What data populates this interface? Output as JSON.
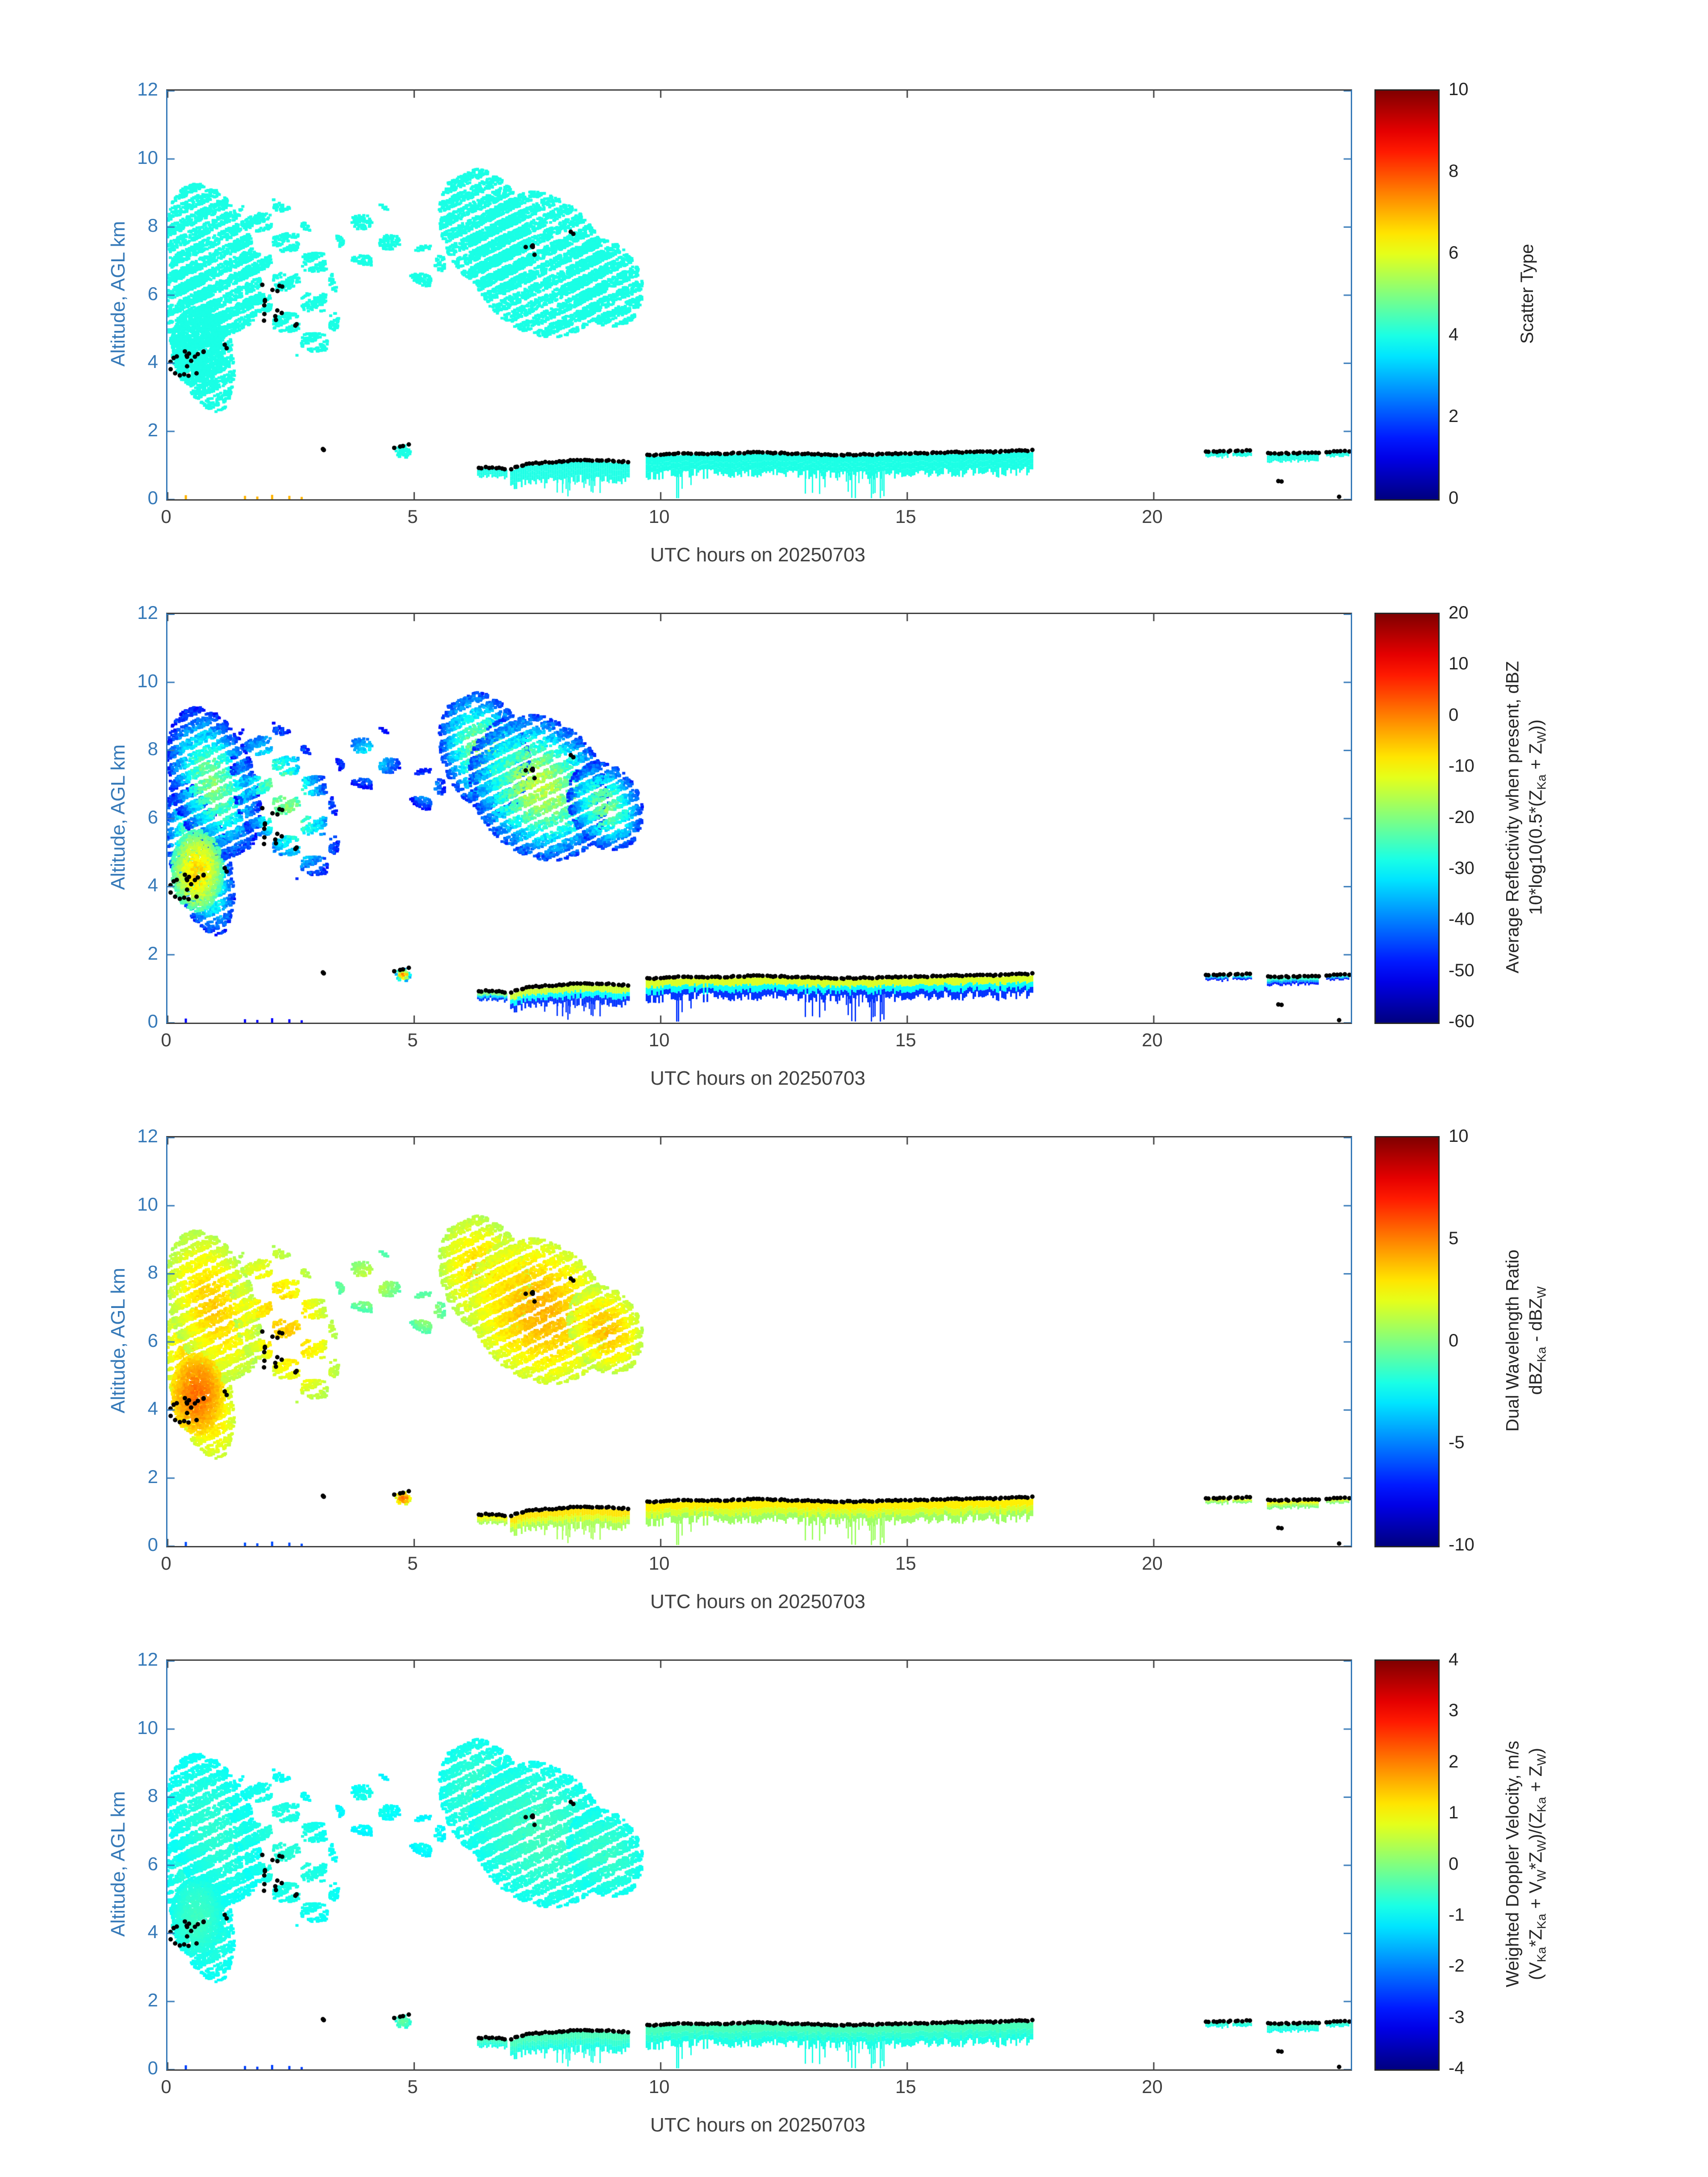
{
  "figure": {
    "xlabel": "UTC hours on 20250703",
    "ylabel": "Altitude, AGL km",
    "x_ticks": [
      "0",
      "5",
      "10",
      "15",
      "20"
    ],
    "y_ticks": [
      "0",
      "2",
      "4",
      "6",
      "8",
      "10",
      "12"
    ],
    "axis_color_y": "#3579b8",
    "axis_color_x": "#404040"
  },
  "panels": [
    {
      "name": "scatter-type",
      "value_key": "scatter",
      "colorbar": {
        "label_lines": [
          "Scatter Type"
        ],
        "range": [
          0,
          10
        ],
        "ticks": [
          "0",
          "2",
          "4",
          "6",
          "8",
          "10"
        ]
      }
    },
    {
      "name": "reflectivity",
      "value_key": "refl",
      "colorbar": {
        "label_lines": [
          "Average Reflectivity when present, dBZ",
          "10*log10(0.5*(Z_{Ka} + Z_{W}))"
        ],
        "range": [
          -60,
          20
        ],
        "ticks": [
          "-60",
          "-50",
          "-40",
          "-30",
          "-20",
          "-10",
          "0",
          "10",
          "20"
        ]
      }
    },
    {
      "name": "dual-wavelength-ratio",
      "value_key": "dwr",
      "colorbar": {
        "label_lines": [
          "Dual Wavelength Ratio",
          "dBZ_{Ka} - dBZ_{W}"
        ],
        "range": [
          -10,
          10
        ],
        "ticks": [
          "-10",
          "-5",
          "0",
          "5",
          "10"
        ]
      }
    },
    {
      "name": "doppler-velocity",
      "value_key": "dop",
      "colorbar": {
        "label_lines": [
          "Weighted Doppler Velocity, m/s",
          "(V_{Ka}*Z_{Ka} + V_{W}*Z_{W})/(Z_{Ka} + Z_{W})"
        ],
        "range": [
          -4,
          4
        ],
        "ticks": [
          "-4",
          "-3",
          "-2",
          "-1",
          "0",
          "1",
          "2",
          "3",
          "4"
        ]
      }
    }
  ],
  "chart_data": {
    "type": "heatmap",
    "colormap": "jet",
    "x": {
      "label": "UTC hours on 20250703",
      "range": [
        0,
        24
      ],
      "ticks": [
        0,
        5,
        10,
        15,
        20
      ],
      "units": "hours"
    },
    "y": {
      "label": "Altitude, AGL km",
      "range": [
        0,
        12
      ],
      "ticks": [
        0,
        2,
        4,
        6,
        8,
        10,
        12
      ],
      "units": "km"
    },
    "panels": [
      {
        "title": "Scatter Type",
        "range": [
          0,
          10
        ],
        "ticks": [
          0,
          2,
          4,
          6,
          8,
          10
        ],
        "dominant_value": 4
      },
      {
        "title": "Average Reflectivity when present, dBZ 10*log10(0.5*(Z_Ka + Z_W))",
        "range": [
          -60,
          20
        ],
        "ticks": [
          -60,
          -50,
          -40,
          -30,
          -20,
          -10,
          0,
          10,
          20
        ],
        "typical_core_dBZ": -13,
        "typical_edge_dBZ": -46
      },
      {
        "title": "Dual Wavelength Ratio dBZ_Ka - dBZ_W",
        "range": [
          -10,
          10
        ],
        "ticks": [
          -10,
          -5,
          0,
          5,
          10
        ],
        "typical_value": 3.5
      },
      {
        "title": "Weighted Doppler Velocity, m/s (V_Ka*Z_Ka + V_W*Z_W)/(Z_Ka + Z_W)",
        "range": [
          -4,
          4
        ],
        "ticks": [
          -4,
          -3,
          -2,
          -1,
          0,
          1,
          2,
          3,
          4
        ],
        "typical_value": -0.6
      }
    ],
    "features": [
      {
        "id": "morning-deck-low",
        "type": "blob",
        "t": [
          0.0,
          1.25
        ],
        "alt": [
          2.6,
          7.1
        ],
        "streak": true,
        "shear": 0.6,
        "vals": {
          "scatter": [
            4,
            4
          ],
          "refl": [
            -16,
            -47
          ],
          "dwr": [
            4,
            1.5
          ],
          "dop": [
            -0.6,
            -0.95
          ]
        }
      },
      {
        "id": "morning-deck-high",
        "type": "blob",
        "t": [
          0.0,
          1.8
        ],
        "alt": [
          4.8,
          9.3
        ],
        "streak": true,
        "shear": 0.6,
        "vals": {
          "scatter": [
            4,
            4
          ],
          "refl": [
            -20,
            -48
          ],
          "dwr": [
            3.5,
            1
          ],
          "dop": [
            -0.65,
            -0.95
          ]
        }
      },
      {
        "id": "morning-core",
        "type": "blob",
        "t": [
          0.05,
          1.1
        ],
        "alt": [
          3.3,
          5.7
        ],
        "vals": {
          "scatter": [
            4,
            4
          ],
          "refl": [
            -6,
            -25
          ],
          "dwr": [
            5.5,
            3
          ],
          "dop": [
            -0.5,
            -0.85
          ]
        }
      },
      {
        "id": "morning-streaks",
        "type": "blob",
        "t": [
          1.35,
          3.35
        ],
        "alt": [
          4.2,
          8.9
        ],
        "streak": true,
        "shear": 0.8,
        "patchy": 0.55,
        "pseed": 1,
        "vals": {
          "scatter": [
            4,
            4
          ],
          "refl": [
            -20,
            -48
          ],
          "dwr": [
            3.5,
            1
          ],
          "dop": [
            -0.7,
            -0.95
          ]
        }
      },
      {
        "id": "midday-patches",
        "type": "blob",
        "t": [
          3.4,
          4.75
        ],
        "alt": [
          6.9,
          8.75
        ],
        "patchy": 0.7,
        "pseed": 2,
        "vals": {
          "scatter": [
            4,
            4
          ],
          "refl": [
            -30,
            -50
          ],
          "dwr": [
            1.5,
            -1
          ],
          "dop": [
            -0.8,
            -1.1
          ]
        }
      },
      {
        "id": "patch-5utc",
        "type": "blob",
        "t": [
          4.85,
          5.6
        ],
        "alt": [
          6.3,
          7.5
        ],
        "patchy": 0.6,
        "pseed": 5,
        "vals": {
          "scatter": [
            4,
            4
          ],
          "refl": [
            -32,
            -50
          ],
          "dwr": [
            1,
            -1
          ],
          "dop": [
            -0.8,
            -1.1
          ]
        }
      },
      {
        "id": "anvil-upper-left",
        "type": "blob",
        "t": [
          5.5,
          7.3
        ],
        "alt": [
          6.2,
          9.75
        ],
        "streak": true,
        "shear": 0.5,
        "vals": {
          "scatter": [
            4,
            4
          ],
          "refl": [
            -18,
            -45
          ],
          "dwr": [
            3.5,
            1
          ],
          "dop": [
            -0.55,
            -0.9
          ]
        }
      },
      {
        "id": "anvil-main",
        "type": "blob",
        "t": [
          6.1,
          8.9
        ],
        "alt": [
          4.8,
          9.1
        ],
        "streak": true,
        "shear": 0.5,
        "vals": {
          "scatter": [
            4,
            4
          ],
          "refl": [
            -15,
            -45
          ],
          "dwr": [
            4,
            1.5
          ],
          "dop": [
            -0.5,
            -0.9
          ]
        }
      },
      {
        "id": "anvil-taper",
        "type": "blob",
        "t": [
          8.1,
          9.6
        ],
        "alt": [
          5.1,
          7.7
        ],
        "streak": true,
        "shear": 0.5,
        "vals": {
          "scatter": [
            4,
            4
          ],
          "refl": [
            -20,
            -46
          ],
          "dwr": [
            3.8,
            1.2
          ],
          "dop": [
            -0.55,
            -0.9
          ]
        }
      },
      {
        "id": "cell-0447",
        "type": "blob",
        "t": [
          4.6,
          4.9
        ],
        "alt": [
          1.25,
          1.62
        ],
        "vals": {
          "scatter": [
            4,
            4
          ],
          "refl": [
            0,
            -35
          ],
          "dwr": [
            5.5,
            2
          ],
          "dop": [
            -0.2,
            -0.7
          ]
        }
      },
      {
        "id": "band-0615",
        "type": "band",
        "top": [
          [
            6.28,
            0.88
          ],
          [
            6.6,
            0.9
          ],
          [
            6.88,
            0.85
          ]
        ],
        "thickness": 0.22,
        "vals": {
          "scatter": [
            4,
            4
          ],
          "refl": [
            -20,
            -45
          ],
          "dwr": [
            2.5,
            0.8
          ],
          "dop": [
            -0.5,
            -0.8
          ]
        }
      },
      {
        "id": "band-0700-0920",
        "type": "band",
        "top": [
          [
            6.95,
            0.85
          ],
          [
            7.3,
            1.0
          ],
          [
            7.8,
            1.05
          ],
          [
            8.3,
            1.12
          ],
          [
            8.85,
            1.1
          ],
          [
            9.35,
            1.05
          ]
        ],
        "thickness": 0.5,
        "fringeZones": [
          [
            7.6,
            9.1
          ]
        ],
        "fringeDepth": 0.45,
        "vals": {
          "scatter": [
            4,
            4
          ],
          "refl": [
            -14,
            -46
          ],
          "dwr": [
            3,
            0.8
          ],
          "dop": [
            -0.45,
            -0.8
          ]
        }
      },
      {
        "id": "band-0940-1730",
        "type": "band",
        "top": [
          [
            9.7,
            1.25
          ],
          [
            10.3,
            1.3
          ],
          [
            11.2,
            1.3
          ],
          [
            12.0,
            1.34
          ],
          [
            12.8,
            1.3
          ],
          [
            13.6,
            1.26
          ],
          [
            14.4,
            1.28
          ],
          [
            15.2,
            1.31
          ],
          [
            16.0,
            1.34
          ],
          [
            16.8,
            1.35
          ],
          [
            17.55,
            1.4
          ]
        ],
        "thickness": 0.55,
        "fringeZones": [
          [
            10.3,
            10.7
          ],
          [
            12.85,
            14.6
          ]
        ],
        "fringeDepth": 0.8,
        "vals": {
          "scatter": [
            4,
            4
          ],
          "refl": [
            -13,
            -46
          ],
          "dwr": [
            2.8,
            0.6
          ],
          "dop": [
            -0.45,
            -0.8
          ]
        }
      },
      {
        "id": "patch-2105",
        "type": "band",
        "top": [
          [
            21.05,
            1.38
          ],
          [
            21.5,
            1.38
          ]
        ],
        "thickness": 0.14,
        "vals": {
          "scatter": [
            4,
            4
          ],
          "refl": [
            -28,
            -48
          ],
          "dwr": [
            2,
            0
          ],
          "dop": [
            -0.6,
            -0.85
          ]
        }
      },
      {
        "id": "patch-2135",
        "type": "band",
        "top": [
          [
            21.6,
            1.38
          ],
          [
            21.98,
            1.38
          ]
        ],
        "thickness": 0.12,
        "vals": {
          "scatter": [
            4,
            4
          ],
          "refl": [
            -28,
            -48
          ],
          "dwr": [
            2,
            0
          ],
          "dop": [
            -0.6,
            -0.85
          ]
        }
      },
      {
        "id": "patch-2220",
        "type": "band",
        "top": [
          [
            22.3,
            1.3
          ],
          [
            22.85,
            1.34
          ],
          [
            23.35,
            1.3
          ]
        ],
        "thickness": 0.2,
        "vals": {
          "scatter": [
            4,
            4
          ],
          "refl": [
            -26,
            -48
          ],
          "dwr": [
            2.2,
            0
          ],
          "dop": [
            -0.6,
            -0.85
          ]
        }
      },
      {
        "id": "patch-2330",
        "type": "band",
        "top": [
          [
            23.5,
            1.38
          ],
          [
            23.95,
            1.38
          ]
        ],
        "thickness": 0.12,
        "vals": {
          "scatter": [
            4,
            4
          ],
          "refl": [
            -28,
            -48
          ],
          "dwr": [
            2,
            0
          ],
          "dop": [
            -0.6,
            -0.85
          ]
        }
      },
      {
        "id": "surface-clutter-specks",
        "type": "specks",
        "pts": [
          [
            0.35,
            0.12
          ],
          [
            1.55,
            0.1
          ],
          [
            1.8,
            0.08
          ],
          [
            2.1,
            0.13
          ],
          [
            2.45,
            0.1
          ],
          [
            2.7,
            0.07
          ]
        ],
        "vals": {
          "scatter": [
            7,
            7
          ],
          "refl": [
            -50,
            -50
          ],
          "dwr": [
            -6,
            -6
          ],
          "dop": [
            -2.5,
            -2.5
          ]
        }
      }
    ],
    "cloud_top_dots": [
      {
        "mode": "scatter",
        "t": [
          0.05,
          0.6
        ],
        "alt": [
          3.6,
          4.4
        ],
        "n": 16
      },
      {
        "mode": "scatter",
        "t": [
          0.6,
          0.8
        ],
        "alt": [
          4.25,
          4.45
        ],
        "n": 3
      },
      {
        "mode": "scatter",
        "t": [
          1.1,
          1.25
        ],
        "alt": [
          4.35,
          4.55
        ],
        "n": 2
      },
      {
        "mode": "scatter",
        "t": [
          1.85,
          2.4
        ],
        "alt": [
          5.1,
          6.3
        ],
        "n": 14
      },
      {
        "mode": "scatter",
        "t": [
          2.5,
          2.65
        ],
        "alt": [
          4.95,
          5.15
        ],
        "n": 2
      },
      {
        "mode": "scatter",
        "t": [
          3.05,
          3.2
        ],
        "alt": [
          1.38,
          1.5
        ],
        "n": 3
      },
      {
        "mode": "line",
        "t": [
          4.62,
          4.88
        ],
        "alt": [
          1.52,
          1.6
        ],
        "n": 4
      },
      {
        "mode": "scatter",
        "t": [
          7.25,
          7.6
        ],
        "alt": [
          7.15,
          7.5
        ],
        "n": 5
      },
      {
        "mode": "scatter",
        "t": [
          8.15,
          8.3
        ],
        "alt": [
          7.75,
          7.9
        ],
        "n": 2
      },
      {
        "mode": "line",
        "follow": "band-0615",
        "t": [
          6.3,
          6.86
        ],
        "n": 9
      },
      {
        "mode": "line",
        "follow": "band-0700-0920",
        "t": [
          6.98,
          9.33
        ],
        "n": 38
      },
      {
        "mode": "line",
        "follow": "band-0940-1730",
        "t": [
          9.72,
          17.52
        ],
        "n": 120
      },
      {
        "mode": "line",
        "t": [
          21.05,
          21.95
        ],
        "alt": [
          1.4,
          1.42
        ],
        "n": 13
      },
      {
        "mode": "line",
        "t": [
          22.3,
          23.35
        ],
        "alt": [
          1.34,
          1.36
        ],
        "n": 15
      },
      {
        "mode": "line",
        "t": [
          23.5,
          23.95
        ],
        "alt": [
          1.4,
          1.4
        ],
        "n": 7
      },
      {
        "mode": "scatter",
        "t": [
          22.45,
          22.6
        ],
        "alt": [
          0.48,
          0.55
        ],
        "n": 2
      },
      {
        "mode": "scatter",
        "t": [
          23.72,
          23.8
        ],
        "alt": [
          0.04,
          0.1
        ],
        "n": 1
      }
    ]
  }
}
